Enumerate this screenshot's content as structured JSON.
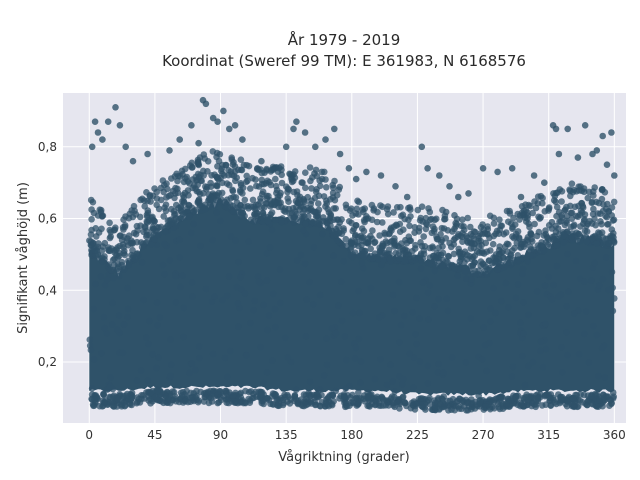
{
  "chart_data": {
    "type": "scatter",
    "title": "År 1979 - 2019",
    "subtitle": "Koordinat (Sweref 99 TM): E 361983, N 6168576",
    "xlabel": "Vågriktning (grader)",
    "ylabel": "Signifikant våghöjd (m)",
    "xlim": [
      -18,
      368
    ],
    "ylim": [
      0.03,
      0.95
    ],
    "x_ticks": [
      0,
      45,
      90,
      135,
      180,
      225,
      270,
      315,
      360
    ],
    "x_tick_labels": [
      "0",
      "45",
      "90",
      "135",
      "180",
      "225",
      "270",
      "315",
      "360"
    ],
    "y_ticks": [
      0.2,
      0.4,
      0.6,
      0.8
    ],
    "y_tick_labels": [
      "0,2",
      "0,4",
      "0,6",
      "0,8"
    ],
    "grid": true,
    "marker_color": "#2f5269",
    "background_color": "#e6e6ef",
    "x_range_of_points": [
      0,
      360
    ],
    "band_points": [
      {
        "x": 0,
        "y_min": 0.09,
        "y_max": 0.56
      },
      {
        "x": 20,
        "y_min": 0.09,
        "y_max": 0.5
      },
      {
        "x": 45,
        "y_min": 0.1,
        "y_max": 0.6
      },
      {
        "x": 75,
        "y_min": 0.1,
        "y_max": 0.68
      },
      {
        "x": 90,
        "y_min": 0.1,
        "y_max": 0.7
      },
      {
        "x": 110,
        "y_min": 0.1,
        "y_max": 0.65
      },
      {
        "x": 135,
        "y_min": 0.09,
        "y_max": 0.65
      },
      {
        "x": 160,
        "y_min": 0.09,
        "y_max": 0.64
      },
      {
        "x": 180,
        "y_min": 0.09,
        "y_max": 0.56
      },
      {
        "x": 200,
        "y_min": 0.09,
        "y_max": 0.54
      },
      {
        "x": 225,
        "y_min": 0.08,
        "y_max": 0.54
      },
      {
        "x": 250,
        "y_min": 0.08,
        "y_max": 0.52
      },
      {
        "x": 270,
        "y_min": 0.08,
        "y_max": 0.5
      },
      {
        "x": 300,
        "y_min": 0.09,
        "y_max": 0.55
      },
      {
        "x": 330,
        "y_min": 0.09,
        "y_max": 0.6
      },
      {
        "x": 360,
        "y_min": 0.09,
        "y_max": 0.58
      }
    ],
    "outliers": [
      {
        "x": 2,
        "y": 0.8
      },
      {
        "x": 4,
        "y": 0.87
      },
      {
        "x": 6,
        "y": 0.84
      },
      {
        "x": 9,
        "y": 0.82
      },
      {
        "x": 13,
        "y": 0.87
      },
      {
        "x": 18,
        "y": 0.91
      },
      {
        "x": 21,
        "y": 0.86
      },
      {
        "x": 25,
        "y": 0.8
      },
      {
        "x": 30,
        "y": 0.76
      },
      {
        "x": 40,
        "y": 0.78
      },
      {
        "x": 55,
        "y": 0.79
      },
      {
        "x": 62,
        "y": 0.82
      },
      {
        "x": 70,
        "y": 0.86
      },
      {
        "x": 75,
        "y": 0.81
      },
      {
        "x": 78,
        "y": 0.93
      },
      {
        "x": 80,
        "y": 0.92
      },
      {
        "x": 85,
        "y": 0.88
      },
      {
        "x": 88,
        "y": 0.87
      },
      {
        "x": 92,
        "y": 0.9
      },
      {
        "x": 96,
        "y": 0.85
      },
      {
        "x": 100,
        "y": 0.86
      },
      {
        "x": 105,
        "y": 0.82
      },
      {
        "x": 118,
        "y": 0.76
      },
      {
        "x": 135,
        "y": 0.8
      },
      {
        "x": 140,
        "y": 0.85
      },
      {
        "x": 142,
        "y": 0.87
      },
      {
        "x": 148,
        "y": 0.84
      },
      {
        "x": 155,
        "y": 0.8
      },
      {
        "x": 162,
        "y": 0.82
      },
      {
        "x": 168,
        "y": 0.85
      },
      {
        "x": 172,
        "y": 0.78
      },
      {
        "x": 178,
        "y": 0.74
      },
      {
        "x": 183,
        "y": 0.71
      },
      {
        "x": 190,
        "y": 0.73
      },
      {
        "x": 200,
        "y": 0.72
      },
      {
        "x": 210,
        "y": 0.69
      },
      {
        "x": 218,
        "y": 0.66
      },
      {
        "x": 228,
        "y": 0.8
      },
      {
        "x": 232,
        "y": 0.74
      },
      {
        "x": 240,
        "y": 0.72
      },
      {
        "x": 247,
        "y": 0.69
      },
      {
        "x": 253,
        "y": 0.66
      },
      {
        "x": 260,
        "y": 0.67
      },
      {
        "x": 270,
        "y": 0.74
      },
      {
        "x": 280,
        "y": 0.73
      },
      {
        "x": 290,
        "y": 0.74
      },
      {
        "x": 296,
        "y": 0.66
      },
      {
        "x": 305,
        "y": 0.72
      },
      {
        "x": 312,
        "y": 0.7
      },
      {
        "x": 318,
        "y": 0.86
      },
      {
        "x": 320,
        "y": 0.85
      },
      {
        "x": 322,
        "y": 0.78
      },
      {
        "x": 328,
        "y": 0.85
      },
      {
        "x": 335,
        "y": 0.77
      },
      {
        "x": 340,
        "y": 0.86
      },
      {
        "x": 345,
        "y": 0.78
      },
      {
        "x": 348,
        "y": 0.79
      },
      {
        "x": 352,
        "y": 0.83
      },
      {
        "x": 355,
        "y": 0.75
      },
      {
        "x": 358,
        "y": 0.84
      },
      {
        "x": 360,
        "y": 0.72
      }
    ]
  }
}
